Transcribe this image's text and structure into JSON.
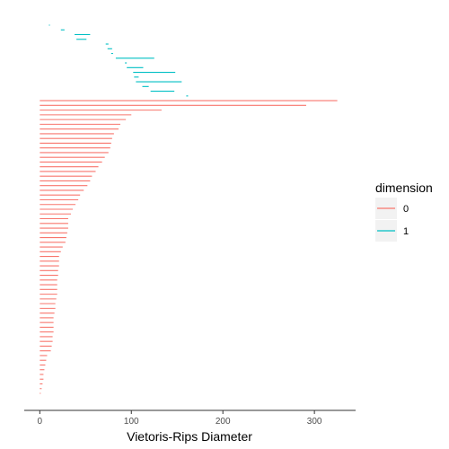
{
  "chart_data": {
    "type": "barcode",
    "xlabel": "Vietoris-Rips Diameter",
    "xlim": [
      -17,
      345
    ],
    "x_ticks": [
      0,
      100,
      200,
      300
    ],
    "x_tick_labels": [
      "0",
      "100",
      "200",
      "300"
    ],
    "grid": false,
    "legend": {
      "title": "dimension",
      "placement": "right",
      "items": [
        {
          "label": "0",
          "color": "#F8766D"
        },
        {
          "label": "1",
          "color": "#00BFC4"
        }
      ]
    },
    "series": [
      {
        "name": "1",
        "color": "#00BFC4",
        "bars": [
          [
            10,
            11
          ],
          [
            23,
            27
          ],
          [
            38,
            55
          ],
          [
            40,
            51
          ],
          [
            72,
            75
          ],
          [
            74,
            79
          ],
          [
            78,
            80
          ],
          [
            83,
            125
          ],
          [
            93,
            95
          ],
          [
            95,
            113
          ],
          [
            102,
            148
          ],
          [
            103,
            108
          ],
          [
            105,
            155
          ],
          [
            112,
            119
          ],
          [
            121,
            147
          ],
          [
            160,
            162
          ]
        ]
      },
      {
        "name": "0",
        "color": "#F8766D",
        "bars": [
          [
            0,
            325
          ],
          [
            0,
            291
          ],
          [
            0,
            133
          ],
          [
            0,
            100
          ],
          [
            0,
            94
          ],
          [
            0,
            88
          ],
          [
            0,
            86
          ],
          [
            0,
            81
          ],
          [
            0,
            79
          ],
          [
            0,
            78
          ],
          [
            0,
            77
          ],
          [
            0,
            75
          ],
          [
            0,
            71
          ],
          [
            0,
            68
          ],
          [
            0,
            64
          ],
          [
            0,
            61
          ],
          [
            0,
            57
          ],
          [
            0,
            55
          ],
          [
            0,
            52
          ],
          [
            0,
            48
          ],
          [
            0,
            44
          ],
          [
            0,
            42
          ],
          [
            0,
            39
          ],
          [
            0,
            36
          ],
          [
            0,
            34
          ],
          [
            0,
            31
          ],
          [
            0,
            31
          ],
          [
            0,
            31
          ],
          [
            0,
            30
          ],
          [
            0,
            29
          ],
          [
            0,
            28
          ],
          [
            0,
            25
          ],
          [
            0,
            23
          ],
          [
            0,
            21
          ],
          [
            0,
            21
          ],
          [
            0,
            21
          ],
          [
            0,
            20
          ],
          [
            0,
            20
          ],
          [
            0,
            19
          ],
          [
            0,
            19
          ],
          [
            0,
            19
          ],
          [
            0,
            19
          ],
          [
            0,
            18
          ],
          [
            0,
            17
          ],
          [
            0,
            17
          ],
          [
            0,
            16
          ],
          [
            0,
            15
          ],
          [
            0,
            15
          ],
          [
            0,
            15
          ],
          [
            0,
            15
          ],
          [
            0,
            14
          ],
          [
            0,
            14
          ],
          [
            0,
            13
          ],
          [
            0,
            12
          ],
          [
            0,
            8
          ],
          [
            0,
            7
          ],
          [
            0,
            6
          ],
          [
            0,
            5
          ],
          [
            0,
            4
          ],
          [
            0,
            4
          ],
          [
            0,
            3
          ],
          [
            0,
            2
          ],
          [
            0,
            0.5
          ]
        ]
      }
    ]
  }
}
